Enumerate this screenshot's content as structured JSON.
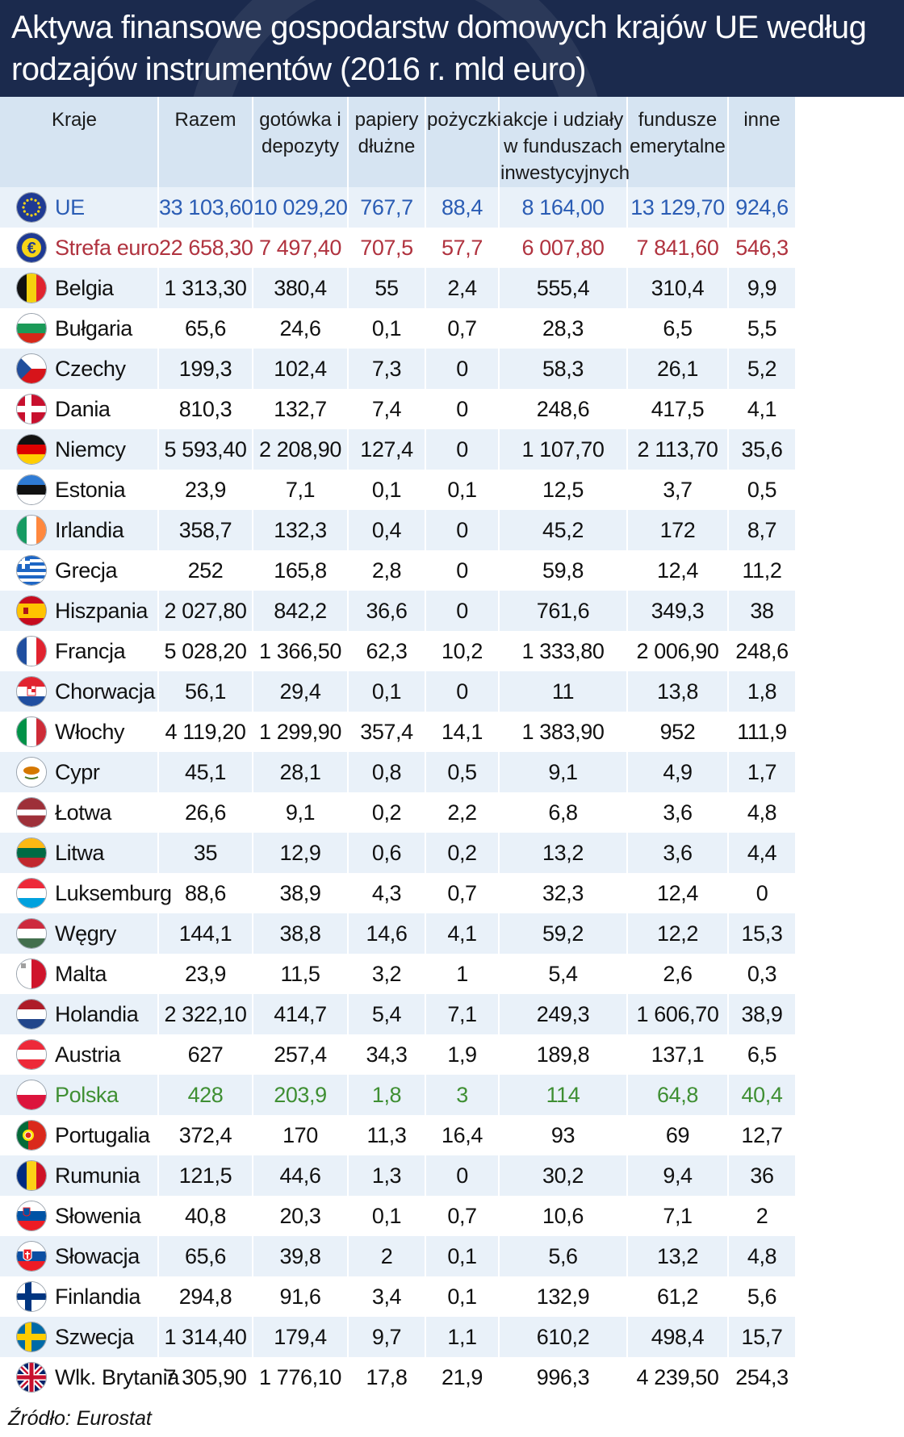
{
  "title": "Aktywa finansowe gospodarstw domowych krajów UE według rodzajów instrumentów (2016 r. mld euro)",
  "source": "Źródło: Eurostat",
  "colors": {
    "header_bg": "#1b2a4d",
    "eu": "#2a5cb4",
    "eurozone": "#b0333f",
    "poland": "#3f8f33",
    "row_alt": "#e9f1f9",
    "thead": "#d6e4f2"
  },
  "chart_data": {
    "type": "table",
    "title": "Aktywa finansowe gospodarstw domowych krajów UE według rodzajów instrumentów (2016 r. mld euro)",
    "columns": [
      "Kraje",
      "Razem",
      "gotówka i depozyty",
      "papiery dłużne",
      "pożyczki",
      "akcje i udziały w funduszach inwestycyjnych",
      "fundusze emerytalne",
      "inne"
    ],
    "rows": [
      {
        "name": "UE",
        "flag": "eu",
        "highlight": "eu",
        "values": [
          "33 103,60",
          "10 029,20",
          "767,7",
          "88,4",
          "8 164,00",
          "13 129,70",
          "924,6"
        ]
      },
      {
        "name": "Strefa euro",
        "flag": "euro",
        "highlight": "euro",
        "values": [
          "22 658,30",
          "7 497,40",
          "707,5",
          "57,7",
          "6 007,80",
          "7 841,60",
          "546,3"
        ]
      },
      {
        "name": "Belgia",
        "flag": "be",
        "values": [
          "1 313,30",
          "380,4",
          "55",
          "2,4",
          "555,4",
          "310,4",
          "9,9"
        ]
      },
      {
        "name": "Bułgaria",
        "flag": "bg",
        "values": [
          "65,6",
          "24,6",
          "0,1",
          "0,7",
          "28,3",
          "6,5",
          "5,5"
        ]
      },
      {
        "name": "Czechy",
        "flag": "cz",
        "values": [
          "199,3",
          "102,4",
          "7,3",
          "0",
          "58,3",
          "26,1",
          "5,2"
        ]
      },
      {
        "name": "Dania",
        "flag": "dk",
        "values": [
          "810,3",
          "132,7",
          "7,4",
          "0",
          "248,6",
          "417,5",
          "4,1"
        ]
      },
      {
        "name": "Niemcy",
        "flag": "de",
        "values": [
          "5 593,40",
          "2 208,90",
          "127,4",
          "0",
          "1 107,70",
          "2 113,70",
          "35,6"
        ]
      },
      {
        "name": "Estonia",
        "flag": "ee",
        "values": [
          "23,9",
          "7,1",
          "0,1",
          "0,1",
          "12,5",
          "3,7",
          "0,5"
        ]
      },
      {
        "name": "Irlandia",
        "flag": "ie",
        "values": [
          "358,7",
          "132,3",
          "0,4",
          "0",
          "45,2",
          "172",
          "8,7"
        ]
      },
      {
        "name": "Grecja",
        "flag": "gr",
        "values": [
          "252",
          "165,8",
          "2,8",
          "0",
          "59,8",
          "12,4",
          "11,2"
        ]
      },
      {
        "name": "Hiszpania",
        "flag": "es",
        "values": [
          "2 027,80",
          "842,2",
          "36,6",
          "0",
          "761,6",
          "349,3",
          "38"
        ]
      },
      {
        "name": "Francja",
        "flag": "fr",
        "values": [
          "5 028,20",
          "1 366,50",
          "62,3",
          "10,2",
          "1 333,80",
          "2 006,90",
          "248,6"
        ]
      },
      {
        "name": "Chorwacja",
        "flag": "hr",
        "values": [
          "56,1",
          "29,4",
          "0,1",
          "0",
          "11",
          "13,8",
          "1,8"
        ]
      },
      {
        "name": "Włochy",
        "flag": "it",
        "values": [
          "4 119,20",
          "1 299,90",
          "357,4",
          "14,1",
          "1 383,90",
          "952",
          "111,9"
        ]
      },
      {
        "name": "Cypr",
        "flag": "cy",
        "values": [
          "45,1",
          "28,1",
          "0,8",
          "0,5",
          "9,1",
          "4,9",
          "1,7"
        ]
      },
      {
        "name": "Łotwa",
        "flag": "lv",
        "values": [
          "26,6",
          "9,1",
          "0,2",
          "2,2",
          "6,8",
          "3,6",
          "4,8"
        ]
      },
      {
        "name": "Litwa",
        "flag": "lt",
        "values": [
          "35",
          "12,9",
          "0,6",
          "0,2",
          "13,2",
          "3,6",
          "4,4"
        ]
      },
      {
        "name": "Luksemburg",
        "flag": "lu",
        "values": [
          "88,6",
          "38,9",
          "4,3",
          "0,7",
          "32,3",
          "12,4",
          "0"
        ]
      },
      {
        "name": "Węgry",
        "flag": "hu",
        "values": [
          "144,1",
          "38,8",
          "14,6",
          "4,1",
          "59,2",
          "12,2",
          "15,3"
        ]
      },
      {
        "name": "Malta",
        "flag": "mt",
        "values": [
          "23,9",
          "11,5",
          "3,2",
          "1",
          "5,4",
          "2,6",
          "0,3"
        ]
      },
      {
        "name": "Holandia",
        "flag": "nl",
        "values": [
          "2 322,10",
          "414,7",
          "5,4",
          "7,1",
          "249,3",
          "1 606,70",
          "38,9"
        ]
      },
      {
        "name": "Austria",
        "flag": "at",
        "values": [
          "627",
          "257,4",
          "34,3",
          "1,9",
          "189,8",
          "137,1",
          "6,5"
        ]
      },
      {
        "name": "Polska",
        "flag": "pl",
        "highlight": "pl",
        "values": [
          "428",
          "203,9",
          "1,8",
          "3",
          "114",
          "64,8",
          "40,4"
        ]
      },
      {
        "name": "Portugalia",
        "flag": "pt",
        "values": [
          "372,4",
          "170",
          "11,3",
          "16,4",
          "93",
          "69",
          "12,7"
        ]
      },
      {
        "name": "Rumunia",
        "flag": "ro",
        "values": [
          "121,5",
          "44,6",
          "1,3",
          "0",
          "30,2",
          "9,4",
          "36"
        ]
      },
      {
        "name": "Słowenia",
        "flag": "si",
        "values": [
          "40,8",
          "20,3",
          "0,1",
          "0,7",
          "10,6",
          "7,1",
          "2"
        ]
      },
      {
        "name": "Słowacja",
        "flag": "sk",
        "values": [
          "65,6",
          "39,8",
          "2",
          "0,1",
          "5,6",
          "13,2",
          "4,8"
        ]
      },
      {
        "name": "Finlandia",
        "flag": "fi",
        "values": [
          "294,8",
          "91,6",
          "3,4",
          "0,1",
          "132,9",
          "61,2",
          "5,6"
        ]
      },
      {
        "name": "Szwecja",
        "flag": "se",
        "values": [
          "1 314,40",
          "179,4",
          "9,7",
          "1,1",
          "610,2",
          "498,4",
          "15,7"
        ]
      },
      {
        "name": "Wlk. Brytania",
        "flag": "gb",
        "values": [
          "7 305,90",
          "1 776,10",
          "17,8",
          "21,9",
          "996,3",
          "4 239,50",
          "254,3"
        ]
      }
    ]
  }
}
